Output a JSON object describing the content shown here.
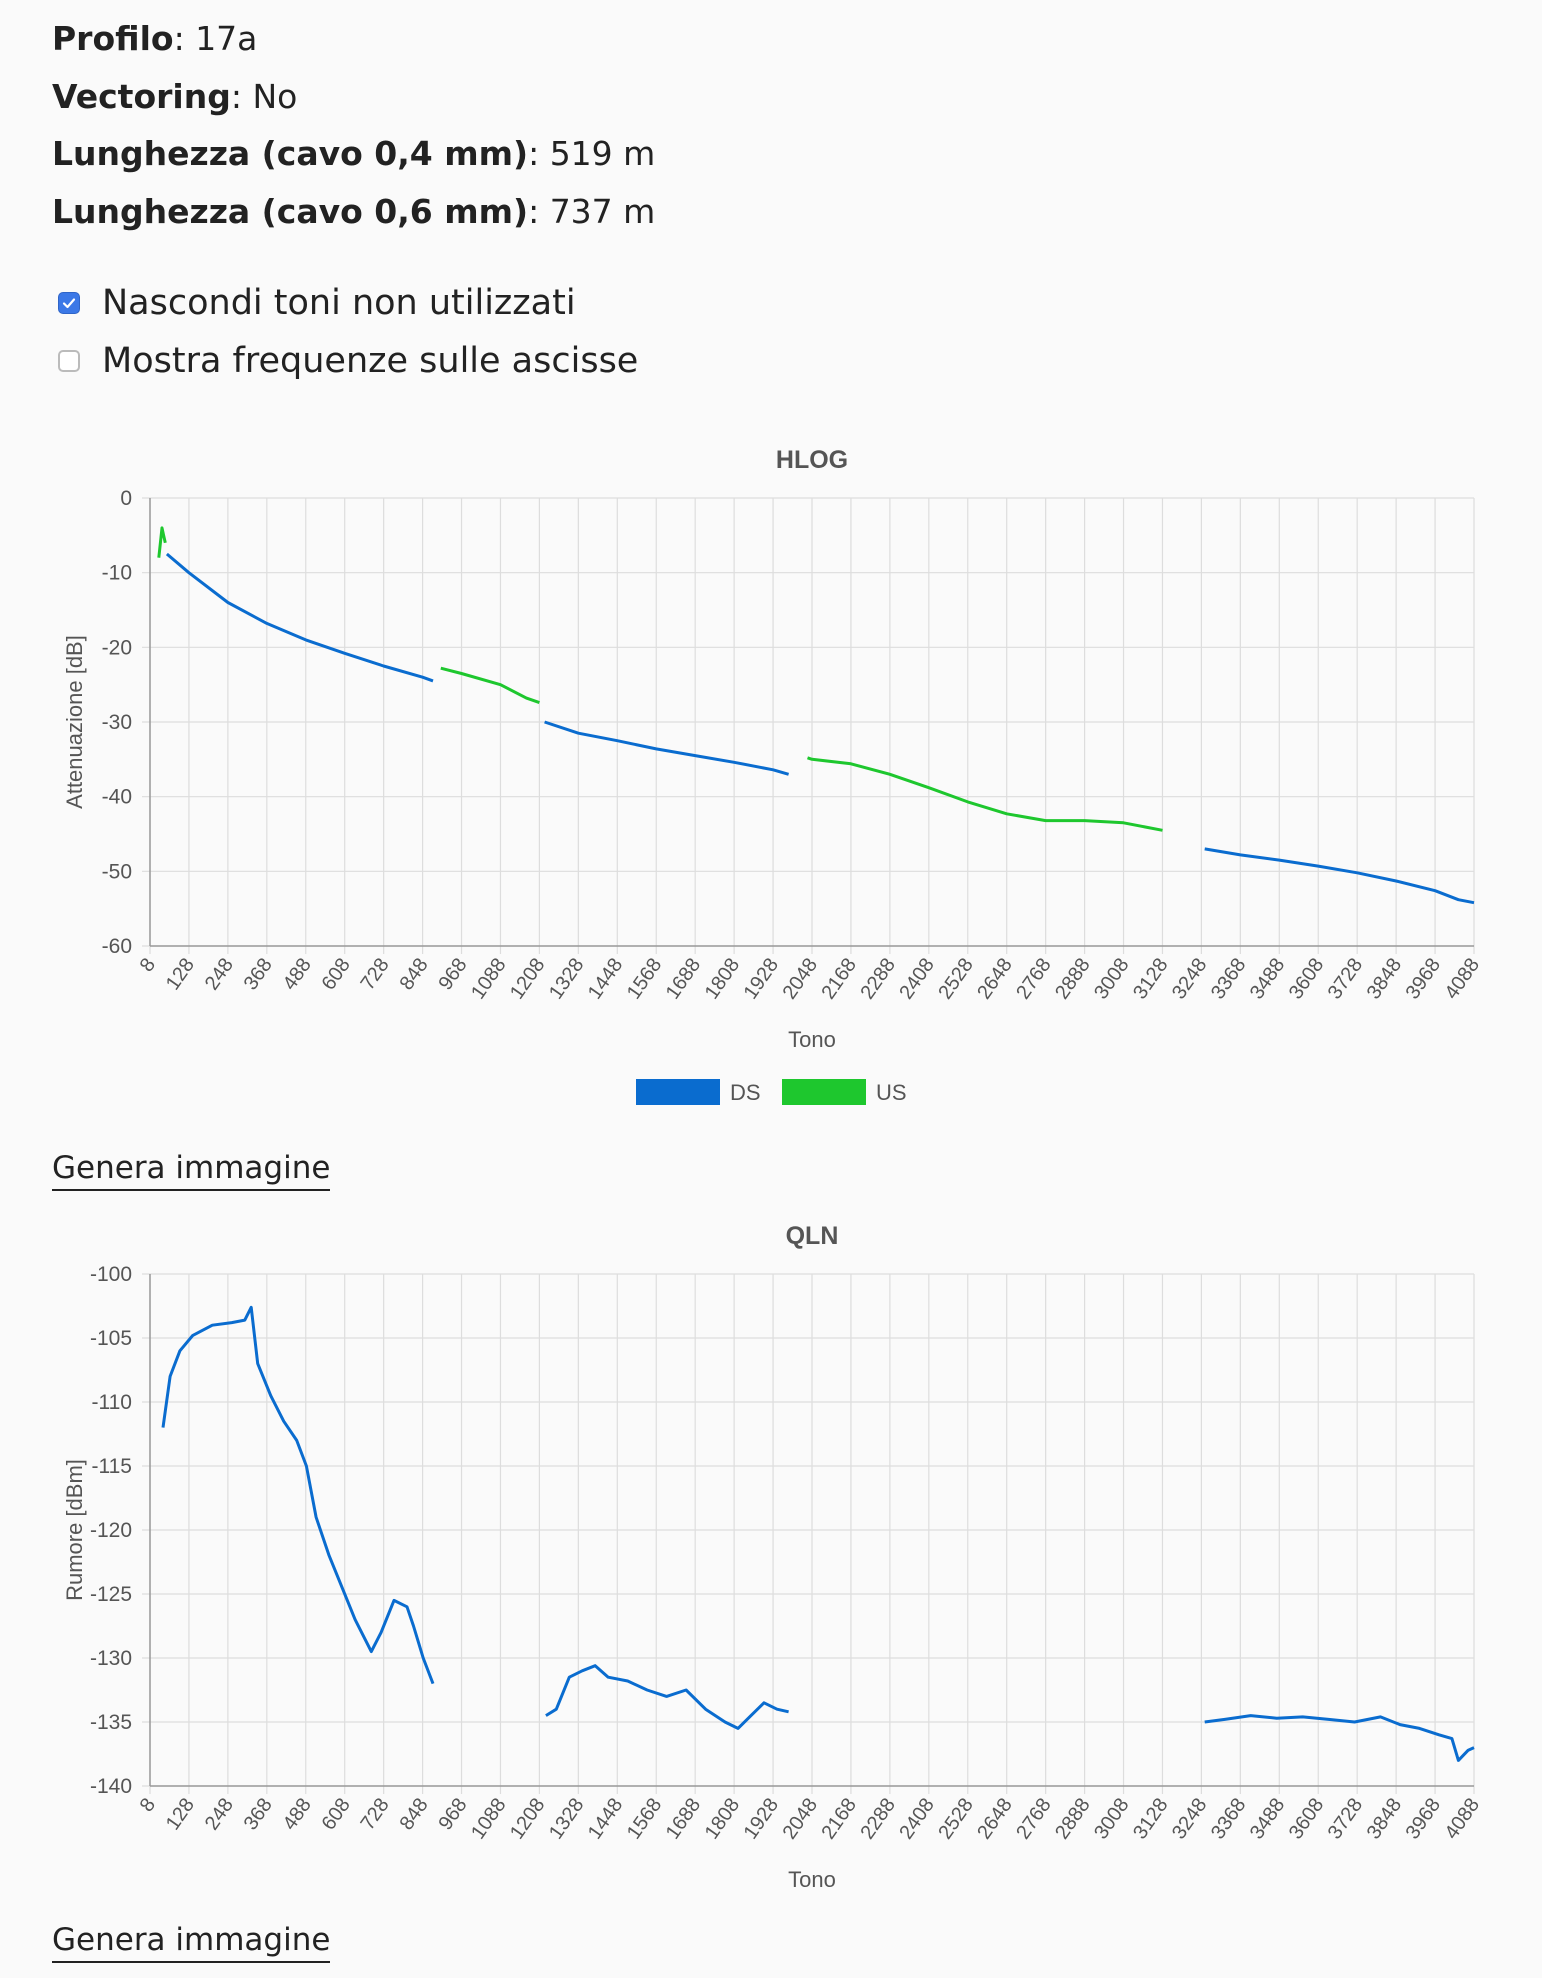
{
  "info": {
    "profile_label": "Profilo",
    "profile_value": "17a",
    "vectoring_label": "Vectoring",
    "vectoring_value": "No",
    "len04_label": "Lunghezza (cavo 0,4 mm)",
    "len04_value": "519 m",
    "len06_label": "Lunghezza (cavo 0,6 mm)",
    "len06_value": "737 m"
  },
  "options": [
    {
      "label": "Nascondi toni non utilizzati",
      "checked": true
    },
    {
      "label": "Mostra frequenze sulle ascisse",
      "checked": false
    }
  ],
  "generate_label": "Genera immagine",
  "chart_data": [
    {
      "type": "line",
      "title": "HLOG",
      "xlabel": "Tono",
      "ylabel": "Attenuazione [dB]",
      "xlim": [
        8,
        4088
      ],
      "ylim": [
        -60,
        0
      ],
      "yticks": [
        0,
        -10,
        -20,
        -30,
        -40,
        -50,
        -60
      ],
      "xticks": [
        8,
        128,
        248,
        368,
        488,
        608,
        728,
        848,
        968,
        1088,
        1208,
        1328,
        1448,
        1568,
        1688,
        1808,
        1928,
        2048,
        2168,
        2288,
        2408,
        2528,
        2648,
        2768,
        2888,
        3008,
        3128,
        3248,
        3368,
        3488,
        3608,
        3728,
        3848,
        3968,
        4088
      ],
      "grid": true,
      "legend": "bottom",
      "series": [
        {
          "name": "DS",
          "color": "#0a6ccf",
          "segments": [
            [
              [
                60,
                -7.5
              ],
              [
                128,
                -10
              ],
              [
                248,
                -14
              ],
              [
                368,
                -16.8
              ],
              [
                488,
                -19
              ],
              [
                608,
                -20.8
              ],
              [
                728,
                -22.5
              ],
              [
                848,
                -24
              ],
              [
                880,
                -24.5
              ]
            ],
            [
              [
                1224,
                -30
              ],
              [
                1328,
                -31.5
              ],
              [
                1448,
                -32.5
              ],
              [
                1568,
                -33.6
              ],
              [
                1688,
                -34.5
              ],
              [
                1808,
                -35.4
              ],
              [
                1928,
                -36.4
              ],
              [
                1976,
                -37
              ]
            ],
            [
              [
                3258,
                -47
              ],
              [
                3368,
                -47.8
              ],
              [
                3488,
                -48.5
              ],
              [
                3608,
                -49.3
              ],
              [
                3728,
                -50.2
              ],
              [
                3848,
                -51.3
              ],
              [
                3968,
                -52.6
              ],
              [
                4040,
                -53.8
              ],
              [
                4088,
                -54.2
              ]
            ]
          ]
        },
        {
          "name": "US",
          "color": "#1ec72e",
          "segments": [
            [
              [
                35,
                -8
              ],
              [
                40,
                -6
              ],
              [
                45,
                -4
              ],
              [
                50,
                -5
              ],
              [
                55,
                -6
              ]
            ],
            [
              [
                904,
                -22.8
              ],
              [
                968,
                -23.5
              ],
              [
                1088,
                -25
              ],
              [
                1168,
                -26.8
              ],
              [
                1208,
                -27.4
              ]
            ],
            [
              [
                2034,
                -34.8
              ],
              [
                2048,
                -35
              ],
              [
                2168,
                -35.6
              ],
              [
                2288,
                -37
              ],
              [
                2408,
                -38.8
              ],
              [
                2528,
                -40.7
              ],
              [
                2648,
                -42.3
              ],
              [
                2768,
                -43.2
              ],
              [
                2888,
                -43.2
              ],
              [
                3008,
                -43.5
              ],
              [
                3128,
                -44.5
              ]
            ]
          ]
        }
      ]
    },
    {
      "type": "line",
      "title": "QLN",
      "xlabel": "Tono",
      "ylabel": "Rumore [dBm]",
      "xlim": [
        8,
        4088
      ],
      "ylim": [
        -140,
        -100
      ],
      "yticks": [
        -100,
        -105,
        -110,
        -115,
        -120,
        -125,
        -130,
        -135,
        -140
      ],
      "xticks": [
        8,
        128,
        248,
        368,
        488,
        608,
        728,
        848,
        968,
        1088,
        1208,
        1328,
        1448,
        1568,
        1688,
        1808,
        1928,
        2048,
        2168,
        2288,
        2408,
        2528,
        2648,
        2768,
        2888,
        3008,
        3128,
        3248,
        3368,
        3488,
        3608,
        3728,
        3848,
        3968,
        4088
      ],
      "grid": true,
      "legend": "none",
      "series": [
        {
          "name": "DS",
          "color": "#0a6ccf",
          "segments": [
            [
              [
                48,
                -112
              ],
              [
                70,
                -108
              ],
              [
                100,
                -106
              ],
              [
                140,
                -104.8
              ],
              [
                200,
                -104
              ],
              [
                260,
                -103.8
              ],
              [
                300,
                -103.6
              ],
              [
                320,
                -102.6
              ],
              [
                340,
                -107
              ],
              [
                380,
                -109.5
              ],
              [
                420,
                -111.5
              ],
              [
                460,
                -113
              ],
              [
                490,
                -115
              ],
              [
                520,
                -119
              ],
              [
                560,
                -122
              ],
              [
                600,
                -124.5
              ],
              [
                640,
                -127
              ],
              [
                690,
                -129.5
              ],
              [
                720,
                -128
              ],
              [
                760,
                -125.5
              ],
              [
                800,
                -126
              ],
              [
                820,
                -127.5
              ],
              [
                850,
                -130
              ],
              [
                880,
                -132
              ]
            ],
            [
              [
                1228,
                -134.5
              ],
              [
                1260,
                -134
              ],
              [
                1300,
                -131.5
              ],
              [
                1340,
                -131
              ],
              [
                1380,
                -130.6
              ],
              [
                1420,
                -131.5
              ],
              [
                1480,
                -131.8
              ],
              [
                1540,
                -132.5
              ],
              [
                1600,
                -133
              ],
              [
                1660,
                -132.5
              ],
              [
                1720,
                -134
              ],
              [
                1780,
                -135
              ],
              [
                1820,
                -135.5
              ],
              [
                1860,
                -134.5
              ],
              [
                1900,
                -133.5
              ],
              [
                1940,
                -134
              ],
              [
                1976,
                -134.2
              ]
            ],
            [
              [
                3258,
                -135
              ],
              [
                3320,
                -134.8
              ],
              [
                3400,
                -134.5
              ],
              [
                3480,
                -134.7
              ],
              [
                3560,
                -134.6
              ],
              [
                3640,
                -134.8
              ],
              [
                3720,
                -135
              ],
              [
                3800,
                -134.6
              ],
              [
                3860,
                -135.2
              ],
              [
                3920,
                -135.5
              ],
              [
                3980,
                -136
              ],
              [
                4020,
                -136.3
              ],
              [
                4040,
                -138
              ],
              [
                4070,
                -137.2
              ],
              [
                4088,
                -137
              ]
            ]
          ]
        }
      ]
    }
  ]
}
